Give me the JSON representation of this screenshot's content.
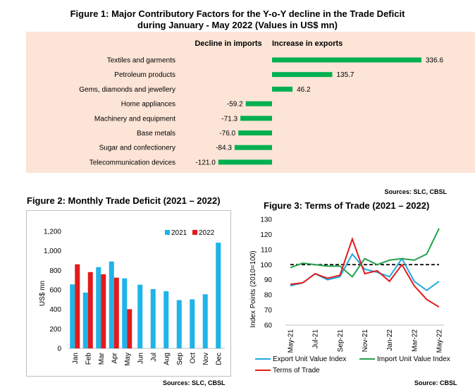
{
  "fig1": {
    "title_line1": "Figure 1: Major Contributory Factors for the Y-o-Y decline in the Trade Deficit",
    "title_line2": "during January - May 2022 (Values in US$ mn)",
    "header_left": "Decline in imports",
    "header_right": "Increase in exports",
    "source": "Sources: SLC, CBSL",
    "colors": {
      "panel": "#fce4d6",
      "bar": "#00b050"
    }
  },
  "fig2": {
    "title": "Figure 2: Monthly Trade Deficit (2021 – 2022)",
    "source": "Sources: SLC, CBSL",
    "colors": {
      "s2021": "#1fb4e8",
      "s2022": "#e31a1c"
    }
  },
  "fig3": {
    "title": "Figure 3: Terms of Trade (2021 – 2022)",
    "source": "Source: CBSL",
    "colors": {
      "export": "#1fa8e0",
      "import": "#22a04b",
      "tot": "#e31a1c",
      "base": "#000000"
    }
  },
  "chart_data": [
    {
      "type": "bar",
      "orientation": "horizontal",
      "categories": [
        "Textiles and garments",
        "Petroleum products",
        "Gems, diamonds and jewellery",
        "Home appliances",
        "Machinery and equipment",
        "Base metals",
        "Sugar and confectionery",
        "Telecommunication devices"
      ],
      "values": [
        336.6,
        135.7,
        46.2,
        -59.2,
        -71.3,
        -76.0,
        -84.3,
        -121.0
      ],
      "labels": [
        "336.6",
        "135.7",
        "46.2",
        "-59.2",
        "-71.3",
        "-76.0",
        "-84.3",
        "-121.0"
      ],
      "title": "Figure 1: Major Contributory Factors for the Y-o-Y decline in the Trade Deficit during January - May 2022 (Values in US$ mn)"
    },
    {
      "type": "bar",
      "categories": [
        "Jan",
        "Feb",
        "Mar",
        "Apr",
        "May",
        "Jun",
        "Jul",
        "Aug",
        "Sep",
        "Oct",
        "Nov",
        "Dec"
      ],
      "series": [
        {
          "name": "2021",
          "values": [
            656,
            572,
            833,
            891,
            718,
            653,
            608,
            586,
            495,
            503,
            555,
            1084
          ]
        },
        {
          "name": "2022",
          "values": [
            862,
            782,
            760,
            725,
            402,
            null,
            null,
            null,
            null,
            null,
            null,
            null
          ]
        }
      ],
      "title": "Figure 2: Monthly Trade Deficit (2021 – 2022)",
      "ylabel": "US$ mn",
      "ylim": [
        0,
        1200
      ],
      "yticks": [
        0,
        200,
        400,
        600,
        800,
        1000,
        1200
      ],
      "ytick_labels": [
        "0",
        "200",
        "400",
        "600",
        "800",
        "1,000",
        "1,200"
      ],
      "legend": "top-right"
    },
    {
      "type": "line",
      "x": [
        "May-21",
        "Jun-21",
        "Jul-21",
        "Aug-21",
        "Sep-21",
        "Oct-21",
        "Nov-21",
        "Dec-21",
        "Jan-22",
        "Feb-22",
        "Mar-22",
        "Apr-22",
        "May-22"
      ],
      "xtick_labels": [
        "May-21",
        "Jul-21",
        "Sep-21",
        "Nov-21",
        "Jan-22",
        "Mar-22",
        "May-22"
      ],
      "series": [
        {
          "name": "Export Unit Value Index",
          "values": [
            86,
            88,
            94,
            90,
            92,
            107,
            97,
            95,
            92,
            104,
            89,
            83,
            89
          ]
        },
        {
          "name": "Import Unit Value Index",
          "values": [
            98,
            101,
            100,
            99,
            99,
            92,
            104,
            100,
            103,
            104,
            103,
            107,
            124
          ]
        },
        {
          "name": "Terms of Trade",
          "values": [
            87,
            88,
            94,
            91,
            93,
            117,
            94,
            96,
            89,
            100,
            86,
            77,
            72
          ]
        }
      ],
      "reference_line": {
        "value": 100,
        "style": "dashed"
      },
      "title": "Figure 3: Terms of Trade (2021 – 2022)",
      "ylabel": "Index Points (2010=100)",
      "ylim": [
        60,
        130
      ],
      "yticks": [
        60,
        70,
        80,
        90,
        100,
        110,
        120,
        130
      ],
      "legend": "bottom"
    }
  ]
}
